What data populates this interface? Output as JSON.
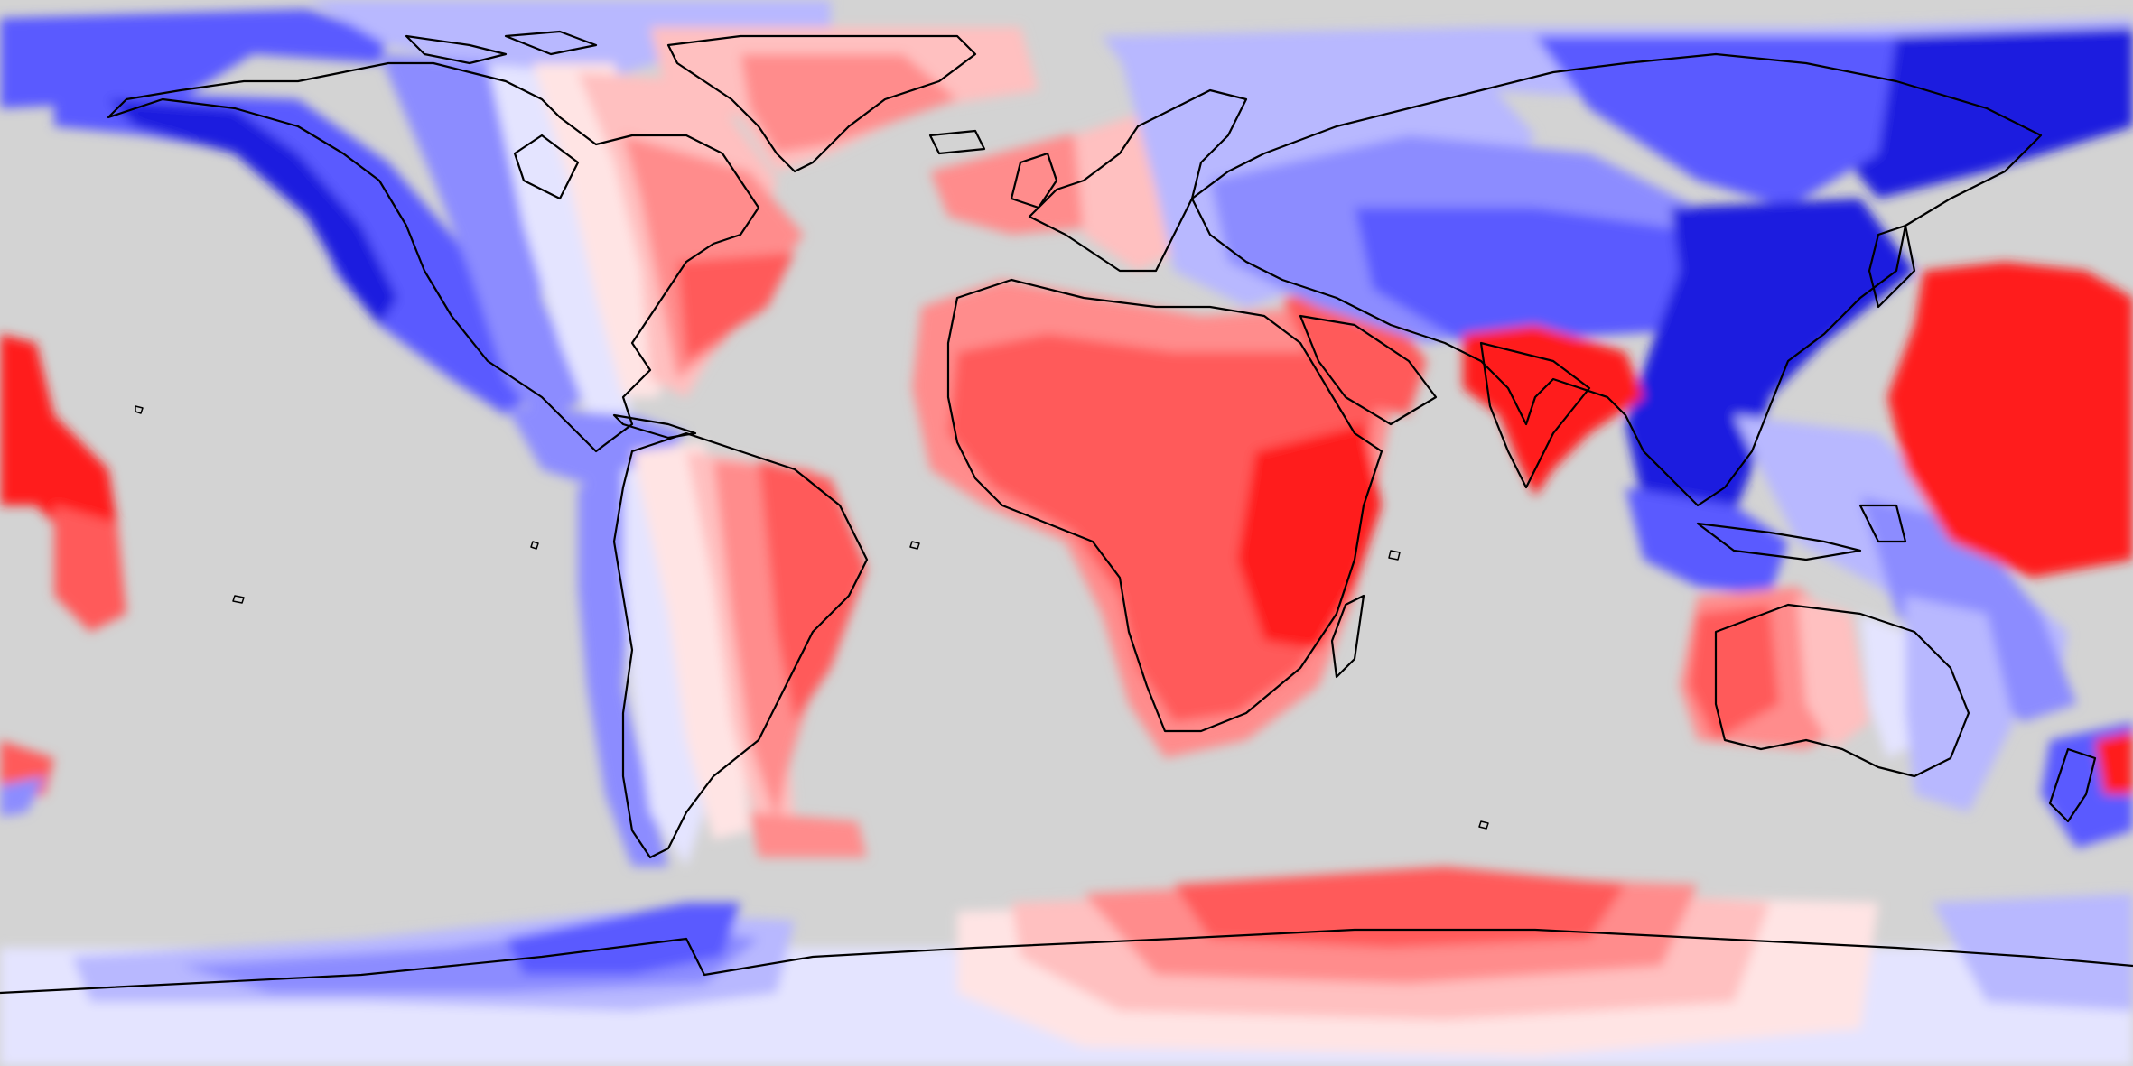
{
  "map": {
    "projection": "equirectangular",
    "background_color": "#d3d3d3",
    "coastline_color": "#000000",
    "palette": {
      "red_strong": "#ff1a1a",
      "red_mid": "#ff5a5a",
      "red_light": "#ff8c8c",
      "red_pale": "#ffc0c0",
      "blush": "#ffe4e4",
      "blue_pale": "#e4e4ff",
      "blue_light": "#b8b8ff",
      "blue_mid": "#8c8cff",
      "blue_deep": "#5a5aff",
      "blue_strong": "#1a1adf"
    }
  }
}
